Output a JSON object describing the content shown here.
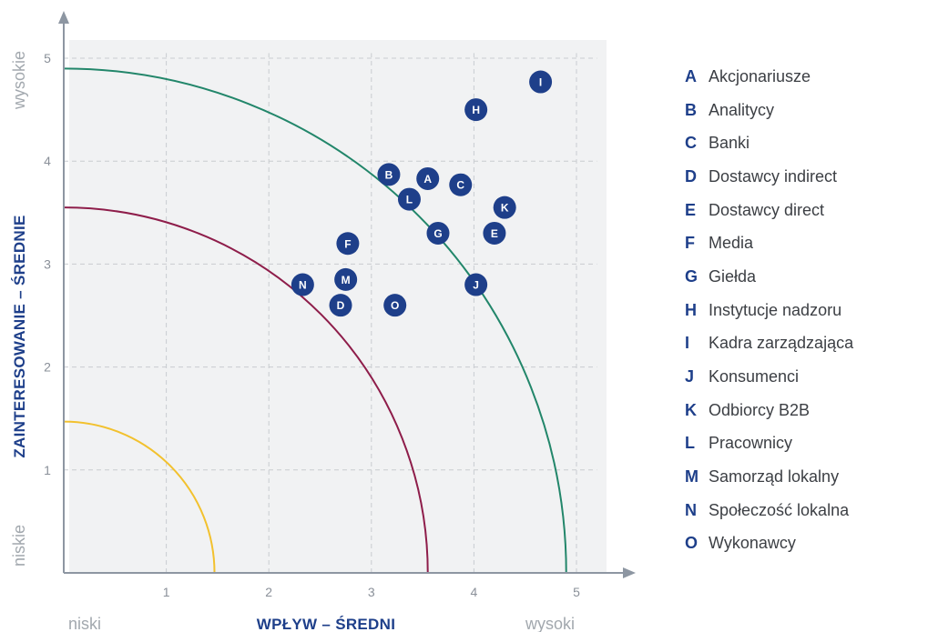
{
  "chart_data": {
    "type": "scatter",
    "xlabel": "WPŁYW – ŚREDNI",
    "ylabel": "ZAINTERESOWANIE – ŚREDNIE",
    "x_low_label": "niski",
    "x_high_label": "wysoki",
    "y_low_label": "niskie",
    "y_high_label": "wysokie",
    "xlim": [
      0,
      5.3
    ],
    "ylim": [
      0,
      5.5
    ],
    "x_ticks": [
      1,
      2,
      3,
      4,
      5
    ],
    "y_ticks": [
      1,
      2,
      3,
      4,
      5
    ],
    "grid": true,
    "points": [
      {
        "key": "A",
        "x": 3.55,
        "y": 3.83
      },
      {
        "key": "B",
        "x": 3.17,
        "y": 3.87
      },
      {
        "key": "C",
        "x": 3.87,
        "y": 3.77
      },
      {
        "key": "D",
        "x": 2.7,
        "y": 2.6
      },
      {
        "key": "E",
        "x": 4.2,
        "y": 3.3
      },
      {
        "key": "F",
        "x": 2.77,
        "y": 3.2
      },
      {
        "key": "G",
        "x": 3.65,
        "y": 3.3
      },
      {
        "key": "H",
        "x": 4.02,
        "y": 4.5
      },
      {
        "key": "I",
        "x": 4.65,
        "y": 4.77
      },
      {
        "key": "J",
        "x": 4.02,
        "y": 2.8
      },
      {
        "key": "K",
        "x": 4.3,
        "y": 3.55
      },
      {
        "key": "L",
        "x": 3.37,
        "y": 3.63
      },
      {
        "key": "M",
        "x": 2.75,
        "y": 2.85
      },
      {
        "key": "N",
        "x": 2.33,
        "y": 2.8
      },
      {
        "key": "O",
        "x": 3.23,
        "y": 2.6
      }
    ],
    "arcs": [
      {
        "radius": 1.47,
        "color": "#f2c12e"
      },
      {
        "radius": 3.55,
        "color": "#8e1d4a"
      },
      {
        "radius": 4.9,
        "color": "#22866a"
      }
    ]
  },
  "legend": [
    {
      "key": "A",
      "label": "Akcjonariusze"
    },
    {
      "key": "B",
      "label": "Analitycy"
    },
    {
      "key": "C",
      "label": "Banki"
    },
    {
      "key": "D",
      "label": "Dostawcy indirect"
    },
    {
      "key": "E",
      "label": "Dostawcy direct"
    },
    {
      "key": "F",
      "label": "Media"
    },
    {
      "key": "G",
      "label": "Giełda"
    },
    {
      "key": "H",
      "label": "Instytucje nadzoru"
    },
    {
      "key": "I",
      "label": "Kadra zarządzająca"
    },
    {
      "key": "J",
      "label": "Konsumenci"
    },
    {
      "key": "K",
      "label": "Odbiorcy B2B"
    },
    {
      "key": "L",
      "label": "Pracownicy"
    },
    {
      "key": "M",
      "label": "Samorząd lokalny"
    },
    {
      "key": "N",
      "label": "Społeczość lokalna"
    },
    {
      "key": "O",
      "label": "Wykonawcy"
    }
  ],
  "colors": {
    "point": "#1e3f8a",
    "axis": "#8d96a2",
    "plot_bg": "#f1f2f3",
    "grid": "#c9ccd0"
  }
}
